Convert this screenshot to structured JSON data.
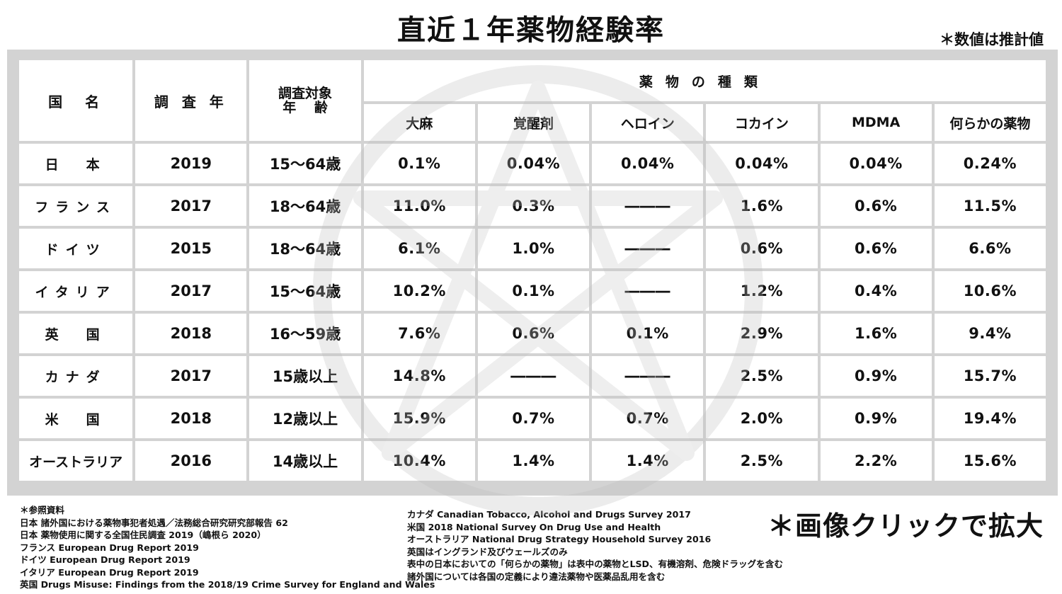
{
  "title": "直近１年薬物経験率",
  "note": "＊数値は推計値",
  "header": {
    "country": "国　名",
    "year": "調 査 年",
    "age_line1": "調査対象",
    "age_line2": "年　 齢",
    "drug_kinds": "薬物の種類",
    "drugs": [
      "大麻",
      "覚醒剤",
      "ヘロイン",
      "コカイン",
      "MDMA",
      "何らかの薬物"
    ]
  },
  "rows": [
    {
      "country": "日　本",
      "year": "2019",
      "age": "15～64歳",
      "values": [
        "0.1%",
        "0.04%",
        "0.04%",
        "0.04%",
        "0.04%",
        "0.24%"
      ]
    },
    {
      "country": "フランス",
      "year": "2017",
      "age": "18～64歳",
      "values": [
        "11.0%",
        "0.3%",
        "―――",
        "1.6%",
        "0.6%",
        "11.5%"
      ]
    },
    {
      "country": "ドイツ",
      "year": "2015",
      "age": "18～64歳",
      "values": [
        "6.1%",
        "1.0%",
        "―――",
        "0.6%",
        "0.6%",
        "6.6%"
      ]
    },
    {
      "country": "イタリア",
      "year": "2017",
      "age": "15～64歳",
      "values": [
        "10.2%",
        "0.1%",
        "―――",
        "1.2%",
        "0.4%",
        "10.6%"
      ]
    },
    {
      "country": "英　国",
      "year": "2018",
      "age": "16～59歳",
      "values": [
        "7.6%",
        "0.6%",
        "0.1%",
        "2.9%",
        "1.6%",
        "9.4%"
      ]
    },
    {
      "country": "カナダ",
      "year": "2017",
      "age": "15歳以上",
      "values": [
        "14.8%",
        "―――",
        "―――",
        "2.5%",
        "0.9%",
        "15.7%"
      ]
    },
    {
      "country": "米　国",
      "year": "2018",
      "age": "12歳以上",
      "values": [
        "15.9%",
        "0.7%",
        "0.7%",
        "2.0%",
        "0.9%",
        "19.4%"
      ]
    },
    {
      "country": "オーストラリア",
      "year": "2016",
      "age": "14歳以上",
      "values": [
        "10.4%",
        "1.4%",
        "1.4%",
        "2.5%",
        "2.2%",
        "15.6%"
      ]
    }
  ],
  "references_left": [
    "＊参照資料",
    "日本 諸外国における薬物事犯者処遇／法務総合研究研究部報告 62",
    "日本 薬物使用に関する全国住民調査 2019（嶋根ら 2020）",
    "フランス European Drug Report 2019",
    "ドイツ European Drug Report 2019",
    "イタリア European Drug Report 2019",
    "英国 Drugs Misuse: Findings from the 2018/19 Crime Survey for England and Wales"
  ],
  "references_right": [
    "カナダ Canadian Tobacco, Alcohol and Drugs Survey 2017",
    "米国 2018 National Survey On Drug Use and Health",
    "オーストラリア National Drug Strategy Household Survey 2016",
    "英国はイングランド及びウェールズのみ",
    "表中の日本においての「何らかの薬物」は表中の薬物とLSD、有機溶剤、危険ドラッグを含む",
    "諸外国については各国の定義により違法薬物や医薬品乱用を含む"
  ],
  "enlarge_text": "＊画像クリックで拡大",
  "colors": {
    "frame": "#d3d3d3",
    "cell": "#ffffff",
    "text": "#111111"
  }
}
